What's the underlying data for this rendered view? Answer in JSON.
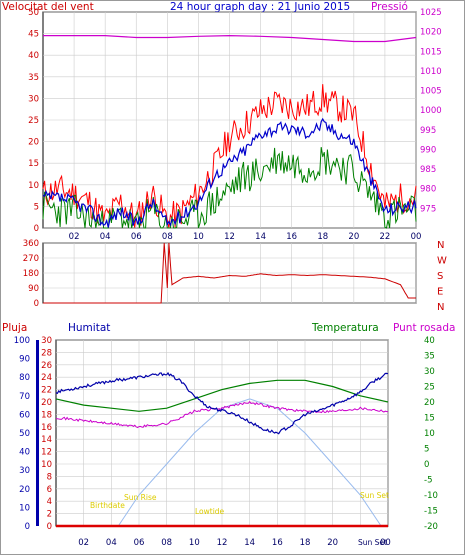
{
  "chart_data": [
    {
      "type": "line",
      "title": "24 hour graph day : 21 Junio 2015",
      "left_axis_label": "Velocitat del vent",
      "right_axis_label": "Pressió",
      "x_ticks": [
        "02",
        "04",
        "06",
        "08",
        "10",
        "12",
        "14",
        "16",
        "18",
        "20",
        "22",
        "00"
      ],
      "x_range": [
        0,
        24
      ],
      "ylim": [
        0,
        50
      ],
      "y_ticks": [
        0,
        5,
        10,
        15,
        20,
        25,
        30,
        35,
        40,
        45,
        50
      ],
      "y2lim": [
        970,
        1025
      ],
      "y2_ticks": [
        975,
        980,
        985,
        990,
        995,
        1000,
        1005,
        1010,
        1015,
        1020,
        1025
      ],
      "colors": {
        "gust": "#ff0000",
        "avg": "#0000cc",
        "min": "#008000",
        "pressure": "#cc00cc"
      },
      "gust_series": [
        [
          0,
          8
        ],
        [
          1,
          9
        ],
        [
          2,
          8
        ],
        [
          3,
          6
        ],
        [
          4,
          2
        ],
        [
          5,
          6
        ],
        [
          6,
          2
        ],
        [
          7,
          8
        ],
        [
          8,
          2
        ],
        [
          9,
          4
        ],
        [
          10,
          8
        ],
        [
          11,
          14
        ],
        [
          12,
          21
        ],
        [
          13,
          24
        ],
        [
          14,
          27
        ],
        [
          15,
          29
        ],
        [
          16,
          28
        ],
        [
          17,
          28
        ],
        [
          18,
          30
        ],
        [
          19,
          28
        ],
        [
          20,
          26
        ],
        [
          21,
          15
        ],
        [
          22,
          5
        ],
        [
          23,
          7
        ],
        [
          24,
          7
        ]
      ],
      "avg_series": [
        [
          0,
          7
        ],
        [
          1,
          7
        ],
        [
          2,
          6
        ],
        [
          3,
          4
        ],
        [
          4,
          1
        ],
        [
          5,
          4
        ],
        [
          6,
          1
        ],
        [
          7,
          6
        ],
        [
          8,
          1
        ],
        [
          9,
          3
        ],
        [
          10,
          6
        ],
        [
          11,
          12
        ],
        [
          12,
          15
        ],
        [
          13,
          18
        ],
        [
          14,
          22
        ],
        [
          15,
          23
        ],
        [
          16,
          23
        ],
        [
          17,
          22
        ],
        [
          18,
          24
        ],
        [
          19,
          22
        ],
        [
          20,
          20
        ],
        [
          21,
          12
        ],
        [
          22,
          4
        ],
        [
          23,
          5
        ],
        [
          24,
          5
        ]
      ],
      "min_series": [
        [
          0,
          5
        ],
        [
          1,
          4
        ],
        [
          2,
          4
        ],
        [
          3,
          2
        ],
        [
          4,
          0
        ],
        [
          5,
          3
        ],
        [
          6,
          0
        ],
        [
          7,
          4
        ],
        [
          8,
          0
        ],
        [
          9,
          2
        ],
        [
          10,
          3
        ],
        [
          11,
          6
        ],
        [
          12,
          9
        ],
        [
          13,
          12
        ],
        [
          14,
          13
        ],
        [
          15,
          16
        ],
        [
          16,
          15
        ],
        [
          17,
          14
        ],
        [
          18,
          16
        ],
        [
          19,
          15
        ],
        [
          20,
          13
        ],
        [
          21,
          8
        ],
        [
          22,
          3
        ],
        [
          23,
          4
        ],
        [
          24,
          4
        ]
      ],
      "pressure_series": [
        [
          0,
          1019
        ],
        [
          2,
          1019
        ],
        [
          4,
          1019
        ],
        [
          6,
          1018.5
        ],
        [
          8,
          1018.5
        ],
        [
          10,
          1018.8
        ],
        [
          12,
          1019
        ],
        [
          14,
          1018.8
        ],
        [
          16,
          1018.5
        ],
        [
          18,
          1018
        ],
        [
          20,
          1017.5
        ],
        [
          22,
          1017.5
        ],
        [
          24,
          1018.5
        ]
      ]
    },
    {
      "type": "line",
      "y_ticks": [
        0,
        90,
        180,
        270,
        360
      ],
      "ylim": [
        0,
        360
      ],
      "compass_labels": [
        "N",
        "W",
        "S",
        "E",
        "N"
      ],
      "series_color": "#cc0000",
      "direction_series": [
        [
          0,
          0
        ],
        [
          7.6,
          0
        ],
        [
          7.8,
          360
        ],
        [
          8.0,
          90
        ],
        [
          8.1,
          360
        ],
        [
          8.3,
          110
        ],
        [
          9,
          150
        ],
        [
          10,
          160
        ],
        [
          11,
          150
        ],
        [
          12,
          165
        ],
        [
          13,
          160
        ],
        [
          14,
          175
        ],
        [
          15,
          165
        ],
        [
          16,
          170
        ],
        [
          17,
          165
        ],
        [
          18,
          170
        ],
        [
          19,
          165
        ],
        [
          20,
          160
        ],
        [
          21,
          155
        ],
        [
          22,
          145
        ],
        [
          23,
          110
        ],
        [
          23.5,
          30
        ],
        [
          24,
          30
        ]
      ]
    },
    {
      "type": "line",
      "legend": [
        "Pluja",
        "Humitat",
        "Temperatura",
        "Punt rosada"
      ],
      "rain_ticks": [
        0,
        2,
        4,
        6,
        8,
        10,
        12,
        14,
        16,
        18,
        20,
        22,
        24,
        26,
        28,
        30
      ],
      "rain_range": [
        0,
        30
      ],
      "humidity_ticks": [
        0,
        10,
        20,
        30,
        40,
        50,
        60,
        70,
        80,
        90,
        100
      ],
      "humidity_range": [
        0,
        100
      ],
      "temp_ticks": [
        -20,
        -15,
        -10,
        -5,
        0,
        5,
        10,
        15,
        20,
        25,
        30,
        35,
        40
      ],
      "temp_range": [
        -20,
        40
      ],
      "colors": {
        "rain": "#dd0000",
        "humidity": "#0000aa",
        "temperature": "#008000",
        "dewpoint": "#cc00cc",
        "sun": "#99bbee"
      },
      "humidity_series": [
        [
          0,
          72
        ],
        [
          2,
          75
        ],
        [
          4,
          78
        ],
        [
          6,
          80
        ],
        [
          8,
          82
        ],
        [
          9,
          78
        ],
        [
          10,
          70
        ],
        [
          11,
          64
        ],
        [
          12,
          62
        ],
        [
          13,
          60
        ],
        [
          14,
          56
        ],
        [
          15,
          52
        ],
        [
          16,
          50
        ],
        [
          17,
          54
        ],
        [
          18,
          60
        ],
        [
          19,
          62
        ],
        [
          20,
          65
        ],
        [
          21,
          68
        ],
        [
          22,
          72
        ],
        [
          23,
          78
        ],
        [
          24,
          82
        ]
      ],
      "temperature_series": [
        [
          0,
          21
        ],
        [
          2,
          19
        ],
        [
          4,
          18
        ],
        [
          6,
          17
        ],
        [
          8,
          18
        ],
        [
          10,
          21
        ],
        [
          12,
          24
        ],
        [
          14,
          26
        ],
        [
          16,
          27
        ],
        [
          18,
          27
        ],
        [
          20,
          25
        ],
        [
          22,
          22
        ],
        [
          24,
          20
        ]
      ],
      "dewpoint_series": [
        [
          0,
          15
        ],
        [
          2,
          14
        ],
        [
          4,
          13
        ],
        [
          6,
          12
        ],
        [
          8,
          13
        ],
        [
          10,
          17
        ],
        [
          12,
          18
        ],
        [
          14,
          20
        ],
        [
          15,
          19
        ],
        [
          16,
          18
        ],
        [
          18,
          17
        ],
        [
          20,
          17
        ],
        [
          22,
          18
        ],
        [
          24,
          17
        ]
      ],
      "sun_elevation_series": [
        [
          4.5,
          -20
        ],
        [
          6,
          -10
        ],
        [
          8,
          0
        ],
        [
          10,
          10
        ],
        [
          12,
          18
        ],
        [
          14,
          21
        ],
        [
          16,
          18
        ],
        [
          18,
          10
        ],
        [
          20,
          0
        ],
        [
          22,
          -10
        ],
        [
          23.5,
          -20
        ]
      ],
      "rain_series": [
        [
          0,
          0
        ],
        [
          24,
          0
        ]
      ],
      "annotations": [
        "Birthdate",
        "Sun Rise",
        "Lowtide",
        "Sun Set",
        "Sun Set",
        "00"
      ]
    }
  ]
}
